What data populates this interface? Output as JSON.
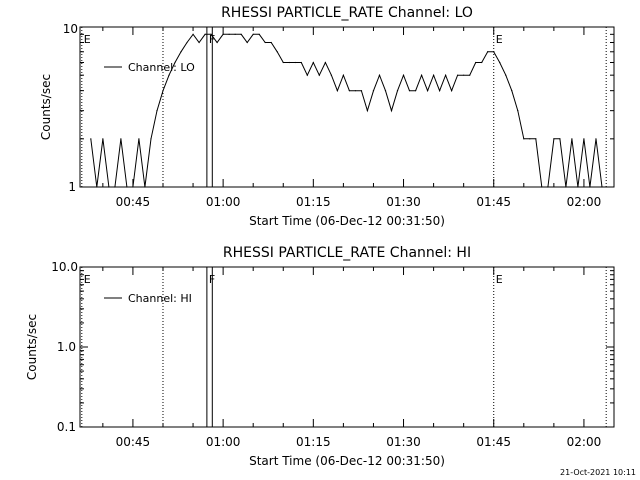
{
  "footer": {
    "timestamp": "21-Oct-2021 10:11"
  },
  "chart_data": [
    {
      "type": "line",
      "title": "RHESSI PARTICLE_RATE Channel: LO",
      "xlabel": "Start Time (06-Dec-12 00:31:50)",
      "ylabel": "Counts/sec",
      "yscale": "log",
      "ylim": [
        1,
        10
      ],
      "xlim_minutes": [
        36,
        107
      ],
      "yticks": [
        "1",
        "10"
      ],
      "xticks": [
        {
          "label": "00:45",
          "t": 45
        },
        {
          "label": "01:00",
          "t": 60
        },
        {
          "label": "01:15",
          "t": 75
        },
        {
          "label": "01:30",
          "t": 90
        },
        {
          "label": "01:45",
          "t": 105
        },
        {
          "label": "02:00",
          "t": 120
        }
      ],
      "legend": {
        "label": "Channel: LO",
        "position": "top-left"
      },
      "markers": [
        {
          "label": "E",
          "t": 36.5,
          "style": "dotted"
        },
        {
          "label": "",
          "t": 50.0,
          "style": "dotted"
        },
        {
          "label": "F",
          "t": 57.3,
          "style": "solid"
        },
        {
          "label": "",
          "t": 58.2,
          "style": "solid"
        },
        {
          "label": "E",
          "t": 105.0,
          "style": "dotted"
        },
        {
          "label": "",
          "t": 123.7,
          "style": "dotted"
        }
      ],
      "series": [
        {
          "name": "Channel: LO",
          "t": [
            38,
            39,
            40,
            41,
            42,
            43,
            44,
            45,
            46,
            47,
            48,
            49,
            50,
            51,
            52,
            53,
            54,
            55,
            56,
            57,
            58,
            59,
            60,
            61,
            62,
            63,
            64,
            65,
            66,
            67,
            68,
            69,
            70,
            71,
            72,
            73,
            74,
            75,
            76,
            77,
            78,
            79,
            80,
            81,
            82,
            83,
            84,
            85,
            86,
            87,
            88,
            89,
            90,
            91,
            92,
            93,
            94,
            95,
            96,
            97,
            98,
            99,
            100,
            101,
            102,
            103,
            104,
            105,
            106,
            107,
            108,
            109,
            110,
            111,
            112,
            113,
            114,
            115,
            116,
            117,
            118,
            119,
            120,
            121,
            122,
            123
          ],
          "values": [
            2,
            1,
            2,
            1,
            1,
            2,
            1,
            1,
            2,
            1,
            2,
            3,
            4,
            5,
            6,
            7,
            8,
            9,
            8,
            9,
            9,
            8,
            9,
            9,
            9,
            9,
            8,
            9,
            9,
            8,
            8,
            7,
            6,
            6,
            6,
            6,
            5,
            6,
            5,
            6,
            5,
            4,
            5,
            4,
            4,
            4,
            3,
            4,
            5,
            4,
            3,
            4,
            5,
            4,
            4,
            5,
            4,
            5,
            4,
            5,
            4,
            5,
            5,
            5,
            6,
            6,
            7,
            7,
            6,
            5,
            4,
            3,
            2,
            2,
            2,
            1,
            1,
            2,
            2,
            1,
            2,
            1,
            2,
            1,
            2,
            1
          ]
        }
      ]
    },
    {
      "type": "line",
      "title": "RHESSI PARTICLE_RATE Channel: HI",
      "xlabel": "Start Time (06-Dec-12 00:31:50)",
      "ylabel": "Counts/sec",
      "yscale": "log",
      "ylim": [
        0.1,
        10
      ],
      "yticks": [
        "0.1",
        "1.0",
        "10.0"
      ],
      "xticks": [
        {
          "label": "00:45",
          "t": 45
        },
        {
          "label": "01:00",
          "t": 60
        },
        {
          "label": "01:15",
          "t": 75
        },
        {
          "label": "01:30",
          "t": 90
        },
        {
          "label": "01:45",
          "t": 105
        },
        {
          "label": "02:00",
          "t": 120
        }
      ],
      "legend": {
        "label": "Channel: HI",
        "position": "top-left"
      },
      "markers": [
        {
          "label": "E",
          "t": 36.5,
          "style": "dotted"
        },
        {
          "label": "",
          "t": 50.0,
          "style": "dotted"
        },
        {
          "label": "F",
          "t": 57.3,
          "style": "solid"
        },
        {
          "label": "",
          "t": 58.2,
          "style": "solid"
        },
        {
          "label": "E",
          "t": 105.0,
          "style": "dotted"
        },
        {
          "label": "",
          "t": 123.7,
          "style": "dotted"
        }
      ],
      "series": [
        {
          "name": "Channel: HI",
          "t": [],
          "values": []
        }
      ]
    }
  ]
}
